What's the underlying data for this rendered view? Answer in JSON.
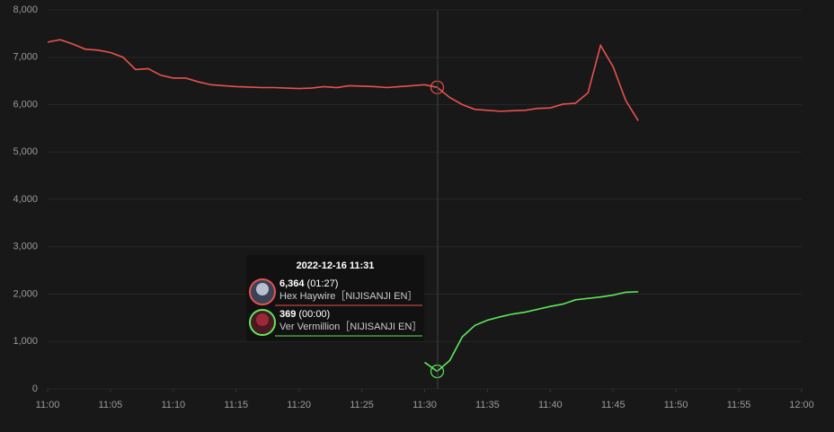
{
  "chart_data": {
    "type": "line",
    "xlim": [
      "11:00",
      "12:00"
    ],
    "xticks": [
      "11:00",
      "11:05",
      "11:10",
      "11:15",
      "11:20",
      "11:25",
      "11:30",
      "11:35",
      "11:40",
      "11:45",
      "11:50",
      "11:55",
      "12:00"
    ],
    "ylim": [
      0,
      8000
    ],
    "yticks": [
      0,
      {
        "value": 1000,
        "label": "1,000"
      },
      {
        "value": 2000,
        "label": "2,000"
      },
      {
        "value": 3000,
        "label": "3,000"
      },
      {
        "value": 4000,
        "label": "4,000"
      },
      {
        "value": 5000,
        "label": "5,000"
      },
      {
        "value": 6000,
        "label": "6,000"
      },
      {
        "value": 7000,
        "label": "7,000"
      },
      {
        "value": 8000,
        "label": "8,000"
      }
    ],
    "grid": true,
    "series": [
      {
        "name": "Hex Haywire［NIJISANJI EN］",
        "color": "#e8524f",
        "x": [
          "11:00",
          "11:01",
          "11:02",
          "11:03",
          "11:04",
          "11:05",
          "11:06",
          "11:07",
          "11:08",
          "11:09",
          "11:10",
          "11:11",
          "11:12",
          "11:13",
          "11:14",
          "11:15",
          "11:16",
          "11:17",
          "11:18",
          "11:19",
          "11:20",
          "11:21",
          "11:22",
          "11:23",
          "11:24",
          "11:25",
          "11:26",
          "11:27",
          "11:28",
          "11:29",
          "11:30",
          "11:31",
          "11:32",
          "11:33",
          "11:34",
          "11:35",
          "11:36",
          "11:37",
          "11:38",
          "11:39",
          "11:40",
          "11:41",
          "11:42",
          "11:43",
          "11:44",
          "11:45",
          "11:46",
          "11:47"
        ],
        "values": [
          7320,
          7370,
          7280,
          7170,
          7150,
          7100,
          7000,
          6740,
          6760,
          6620,
          6560,
          6560,
          6480,
          6420,
          6400,
          6380,
          6370,
          6360,
          6360,
          6350,
          6340,
          6350,
          6380,
          6360,
          6400,
          6390,
          6380,
          6360,
          6380,
          6400,
          6420,
          6364,
          6150,
          6000,
          5900,
          5880,
          5860,
          5870,
          5880,
          5920,
          5930,
          6010,
          6030,
          6250,
          7250,
          6800,
          6090,
          5660
        ]
      },
      {
        "name": "Ver Vermillion［NIJISANJI EN］",
        "color": "#5ee85a",
        "x": [
          "11:30",
          "11:31",
          "11:32",
          "11:33",
          "11:34",
          "11:35",
          "11:36",
          "11:37",
          "11:38",
          "11:39",
          "11:40",
          "11:41",
          "11:42",
          "11:43",
          "11:44",
          "11:45",
          "11:46",
          "11:47"
        ],
        "values": [
          560,
          369,
          600,
          1100,
          1340,
          1450,
          1520,
          1580,
          1620,
          1680,
          1740,
          1790,
          1880,
          1910,
          1940,
          1980,
          2040,
          2050
        ]
      }
    ],
    "tooltip": {
      "title": "2022-12-16 11:31",
      "index": [
        31,
        1
      ],
      "items": [
        {
          "value_label": "6,364",
          "extra": "(01:27)"
        },
        {
          "value_label": "369",
          "extra": "(00:00)"
        }
      ]
    }
  }
}
